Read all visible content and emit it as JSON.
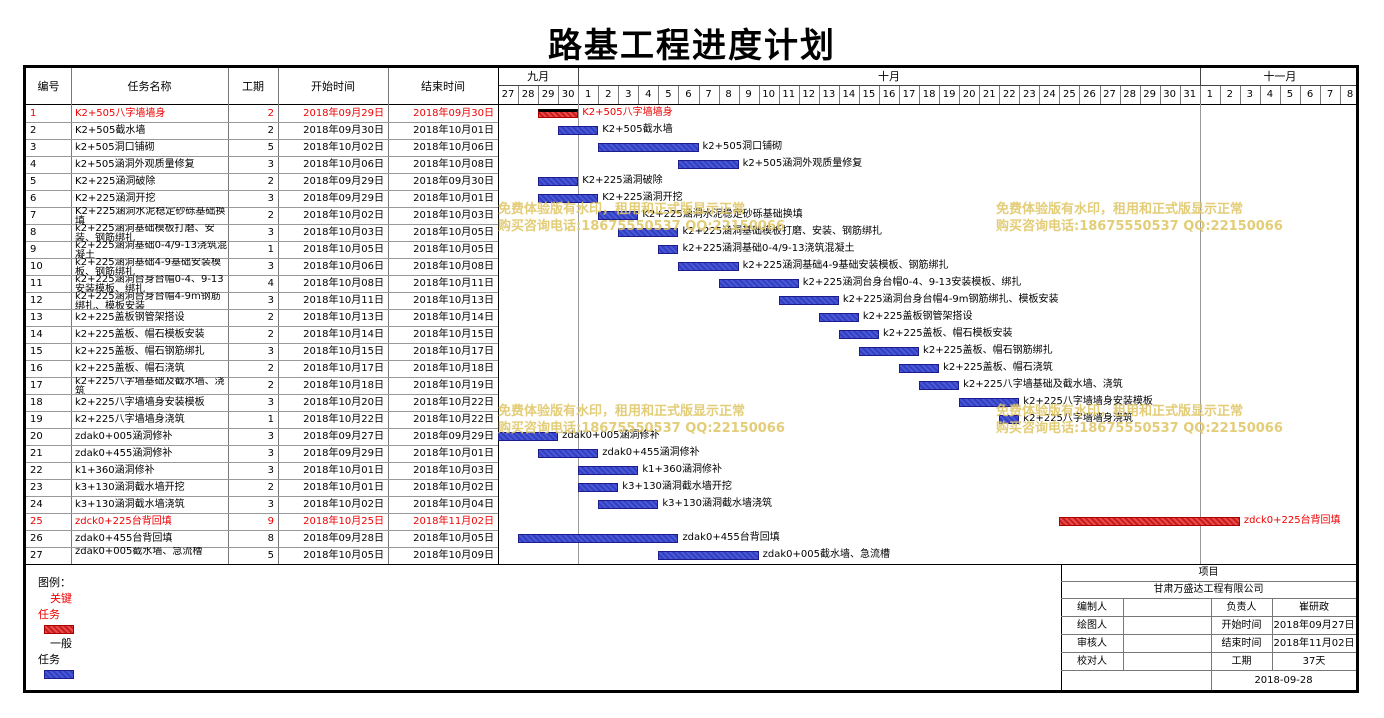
{
  "title": "路基工程进度计划",
  "headers": {
    "id": "编号",
    "name": "任务名称",
    "duration": "工期",
    "start": "开始时间",
    "end": "结束时间"
  },
  "months": [
    {
      "label": "九月",
      "days": [
        "27",
        "28",
        "29",
        "30"
      ]
    },
    {
      "label": "十月",
      "days": [
        "1",
        "2",
        "3",
        "4",
        "5",
        "6",
        "7",
        "8",
        "9",
        "10",
        "11",
        "12",
        "13",
        "14",
        "15",
        "16",
        "17",
        "18",
        "19",
        "20",
        "21",
        "22",
        "23",
        "24",
        "25",
        "26",
        "27",
        "28",
        "29",
        "30",
        "31"
      ]
    },
    {
      "label": "十一月",
      "days": [
        "1",
        "2",
        "3",
        "4",
        "5",
        "6",
        "7",
        "8"
      ]
    }
  ],
  "tasks": [
    {
      "id": "1",
      "name": "K2+505八字墙墙身",
      "duration": "2",
      "start": "2018年09月29日",
      "end": "2018年09月30日",
      "critical": true,
      "s": 2,
      "d": 2,
      "label": "K2+505八字墙墙身"
    },
    {
      "id": "2",
      "name": "K2+505截水墙",
      "duration": "2",
      "start": "2018年09月30日",
      "end": "2018年10月01日",
      "critical": false,
      "s": 3,
      "d": 2,
      "label": "K2+505截水墙"
    },
    {
      "id": "3",
      "name": "k2+505洞口铺砌",
      "duration": "5",
      "start": "2018年10月02日",
      "end": "2018年10月06日",
      "critical": false,
      "s": 5,
      "d": 5,
      "label": "k2+505洞口铺砌"
    },
    {
      "id": "4",
      "name": "k2+505涵洞外观质量修复",
      "duration": "3",
      "start": "2018年10月06日",
      "end": "2018年10月08日",
      "critical": false,
      "s": 9,
      "d": 3,
      "label": "k2+505涵洞外观质量修复"
    },
    {
      "id": "5",
      "name": "K2+225涵洞破除",
      "duration": "2",
      "start": "2018年09月29日",
      "end": "2018年09月30日",
      "critical": false,
      "s": 2,
      "d": 2,
      "label": "K2+225涵洞破除"
    },
    {
      "id": "6",
      "name": "K2+225涵洞开挖",
      "duration": "3",
      "start": "2018年09月29日",
      "end": "2018年10月01日",
      "critical": false,
      "s": 2,
      "d": 3,
      "label": "K2+225涵洞开挖"
    },
    {
      "id": "7",
      "name": "K2+225涵洞水泥稳定砂砾基础换填",
      "duration": "2",
      "start": "2018年10月02日",
      "end": "2018年10月03日",
      "critical": false,
      "s": 5,
      "d": 2,
      "label": "K2+225涵洞水泥稳定砂砾基础换填"
    },
    {
      "id": "8",
      "name": "k2+225涵洞基础模板打磨、安装、钢筋绑扎",
      "duration": "3",
      "start": "2018年10月03日",
      "end": "2018年10月05日",
      "critical": false,
      "s": 6,
      "d": 3,
      "label": "k2+225涵洞基础模板打磨、安装、钢筋绑扎"
    },
    {
      "id": "9",
      "name": "k2+225涵洞基础0-4/9-13浇筑混凝土",
      "duration": "1",
      "start": "2018年10月05日",
      "end": "2018年10月05日",
      "critical": false,
      "s": 8,
      "d": 1,
      "label": "k2+225涵洞基础0-4/9-13浇筑混凝土"
    },
    {
      "id": "10",
      "name": "k2+225涵洞基础4-9基础安装模板、钢筋绑扎",
      "duration": "3",
      "start": "2018年10月06日",
      "end": "2018年10月08日",
      "critical": false,
      "s": 9,
      "d": 3,
      "label": "k2+225涵洞基础4-9基础安装模板、钢筋绑扎"
    },
    {
      "id": "11",
      "name": "k2+225涵洞台身台帽0-4、9-13安装模板、绑扎",
      "duration": "4",
      "start": "2018年10月08日",
      "end": "2018年10月11日",
      "critical": false,
      "s": 11,
      "d": 4,
      "label": "k2+225涵洞台身台帽0-4、9-13安装模板、绑扎"
    },
    {
      "id": "12",
      "name": "k2+225涵洞台身台帽4-9m钢筋绑扎、模板安装",
      "duration": "3",
      "start": "2018年10月11日",
      "end": "2018年10月13日",
      "critical": false,
      "s": 14,
      "d": 3,
      "label": "k2+225涵洞台身台帽4-9m钢筋绑扎、模板安装"
    },
    {
      "id": "13",
      "name": "k2+225盖板钢管架搭设",
      "duration": "2",
      "start": "2018年10月13日",
      "end": "2018年10月14日",
      "critical": false,
      "s": 16,
      "d": 2,
      "label": "k2+225盖板钢管架搭设"
    },
    {
      "id": "14",
      "name": "k2+225盖板、帽石模板安装",
      "duration": "2",
      "start": "2018年10月14日",
      "end": "2018年10月15日",
      "critical": false,
      "s": 17,
      "d": 2,
      "label": "k2+225盖板、帽石模板安装"
    },
    {
      "id": "15",
      "name": "k2+225盖板、帽石钢筋绑扎",
      "duration": "3",
      "start": "2018年10月15日",
      "end": "2018年10月17日",
      "critical": false,
      "s": 18,
      "d": 3,
      "label": "k2+225盖板、帽石钢筋绑扎"
    },
    {
      "id": "16",
      "name": "k2+225盖板、帽石浇筑",
      "duration": "2",
      "start": "2018年10月17日",
      "end": "2018年10月18日",
      "critical": false,
      "s": 20,
      "d": 2,
      "label": "k2+225盖板、帽石浇筑"
    },
    {
      "id": "17",
      "name": "k2+225八字墙基础及截水墙、浇筑",
      "duration": "2",
      "start": "2018年10月18日",
      "end": "2018年10月19日",
      "critical": false,
      "s": 21,
      "d": 2,
      "label": "k2+225八字墙基础及截水墙、浇筑"
    },
    {
      "id": "18",
      "name": "k2+225八字墙墙身安装模板",
      "duration": "3",
      "start": "2018年10月20日",
      "end": "2018年10月22日",
      "critical": false,
      "s": 23,
      "d": 3,
      "label": "k2+225八字墙墙身安装模板"
    },
    {
      "id": "19",
      "name": "k2+225八字墙墙身浇筑",
      "duration": "1",
      "start": "2018年10月22日",
      "end": "2018年10月22日",
      "critical": false,
      "s": 25,
      "d": 1,
      "label": "k2+225八字墙墙身浇筑"
    },
    {
      "id": "20",
      "name": "zdak0+005涵洞修补",
      "duration": "3",
      "start": "2018年09月27日",
      "end": "2018年09月29日",
      "critical": false,
      "s": 0,
      "d": 3,
      "label": "zdak0+005涵洞修补"
    },
    {
      "id": "21",
      "name": "zdak0+455涵洞修补",
      "duration": "3",
      "start": "2018年09月29日",
      "end": "2018年10月01日",
      "critical": false,
      "s": 2,
      "d": 3,
      "label": "zdak0+455涵洞修补"
    },
    {
      "id": "22",
      "name": "k1+360涵洞修补",
      "duration": "3",
      "start": "2018年10月01日",
      "end": "2018年10月03日",
      "critical": false,
      "s": 4,
      "d": 3,
      "label": "k1+360涵洞修补"
    },
    {
      "id": "23",
      "name": "k3+130涵洞截水墙开挖",
      "duration": "2",
      "start": "2018年10月01日",
      "end": "2018年10月02日",
      "critical": false,
      "s": 4,
      "d": 2,
      "label": "k3+130涵洞截水墙开挖"
    },
    {
      "id": "24",
      "name": "k3+130涵洞截水墙浇筑",
      "duration": "3",
      "start": "2018年10月02日",
      "end": "2018年10月04日",
      "critical": false,
      "s": 5,
      "d": 3,
      "label": "k3+130涵洞截水墙浇筑"
    },
    {
      "id": "25",
      "name": "zdck0+225台背回填",
      "duration": "9",
      "start": "2018年10月25日",
      "end": "2018年11月02日",
      "critical": true,
      "s": 28,
      "d": 9,
      "label": "zdck0+225台背回填"
    },
    {
      "id": "26",
      "name": "zdak0+455台背回填",
      "duration": "8",
      "start": "2018年09月28日",
      "end": "2018年10月05日",
      "critical": false,
      "s": 1,
      "d": 8,
      "label": "zdak0+455台背回填"
    },
    {
      "id": "27",
      "name": "zdak0+005截水墙、急流槽",
      "duration": "5",
      "start": "2018年10月05日",
      "end": "2018年10月09日",
      "critical": false,
      "s": 8,
      "d": 5,
      "label": "zdak0+005截水墙、急流槽"
    }
  ],
  "watermarks": [
    {
      "line1": "免费体验版有水印，租用和正式版显示正常",
      "line2": "购买咨询电话:18675550537 QQ:22150066"
    }
  ],
  "legend": {
    "label": "图例：",
    "critical": "关键任务",
    "normal": "一般任务",
    "critical_color": "#e03030",
    "normal_color": "#3a48c8"
  },
  "infobox": {
    "header": "项目",
    "company": "甘肃万盛达工程有限公司",
    "rows": [
      {
        "k1": "编制人",
        "v1": "",
        "k2": "负责人",
        "v2": "崔研政"
      },
      {
        "k1": "绘图人",
        "v1": "",
        "k2": "开始时间",
        "v2": "2018年09月27日"
      },
      {
        "k1": "审核人",
        "v1": "",
        "k2": "结束时间",
        "v2": "2018年11月02日"
      },
      {
        "k1": "校对人",
        "v1": "",
        "k2": "工期",
        "v2": "37天"
      }
    ],
    "date": "2018-09-28"
  }
}
